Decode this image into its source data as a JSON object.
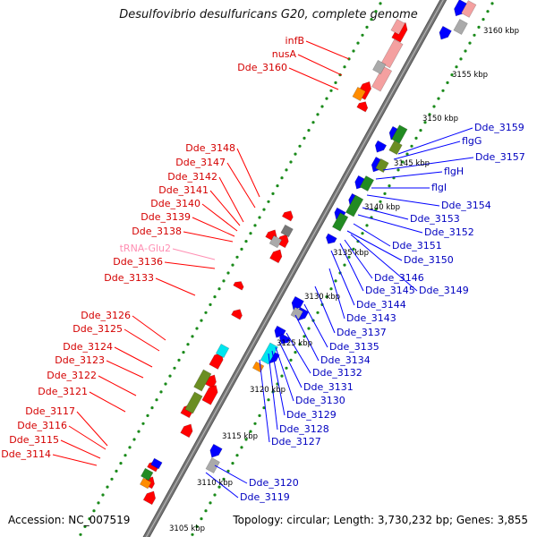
{
  "title": "Desulfovibrio desulfuricans G20, complete genome",
  "footer": {
    "accession": "Accession: NC_007519",
    "topology": "Topology: circular; Length: 3,730,232 bp; Genes: 3,855"
  },
  "colors": {
    "backbone": "#777777",
    "gene_forward": "#ff0000",
    "gene_reverse": "#0000ff",
    "trna": "#ff8fb3",
    "cds_green": "#228b22",
    "cds_olive": "#6b8e23",
    "cds_cyan": "#00e5ee",
    "cds_orange": "#ff8c00",
    "pink_block": "#f4a0a0",
    "gray_block": "#aaaaaa",
    "label_red": "#d40000",
    "label_blue": "#0000c0"
  },
  "scale_labels": [
    "3160 kbp",
    "3155 kbp",
    "3150 kbp",
    "3145 kbp",
    "3140 kbp",
    "3135 kbp",
    "3130 kbp",
    "3125 kbp",
    "3120 kbp",
    "3115 kbp",
    "3110 kbp",
    "3105 kbp"
  ],
  "left_labels": [
    {
      "text": "infB",
      "color": "red"
    },
    {
      "text": "nusA",
      "color": "red"
    },
    {
      "text": "Dde_3160",
      "color": "red"
    },
    {
      "text": "Dde_3148",
      "color": "red"
    },
    {
      "text": "Dde_3147",
      "color": "red"
    },
    {
      "text": "Dde_3142",
      "color": "red"
    },
    {
      "text": "Dde_3141",
      "color": "red"
    },
    {
      "text": "Dde_3140",
      "color": "red"
    },
    {
      "text": "Dde_3139",
      "color": "red"
    },
    {
      "text": "Dde_3138",
      "color": "red"
    },
    {
      "text": "tRNA-Glu2",
      "color": "pink"
    },
    {
      "text": "Dde_3136",
      "color": "red"
    },
    {
      "text": "Dde_3133",
      "color": "red"
    },
    {
      "text": "Dde_3126",
      "color": "red"
    },
    {
      "text": "Dde_3125",
      "color": "red"
    },
    {
      "text": "Dde_3124",
      "color": "red"
    },
    {
      "text": "Dde_3123",
      "color": "red"
    },
    {
      "text": "Dde_3122",
      "color": "red"
    },
    {
      "text": "Dde_3121",
      "color": "red"
    },
    {
      "text": "Dde_3117",
      "color": "red"
    },
    {
      "text": "Dde_3116",
      "color": "red"
    },
    {
      "text": "Dde_3115",
      "color": "red"
    },
    {
      "text": "Dde_3114",
      "color": "red"
    }
  ],
  "right_labels": [
    {
      "text": "Dde_3159",
      "color": "blue"
    },
    {
      "text": "flgG",
      "color": "blue"
    },
    {
      "text": "Dde_3157",
      "color": "blue"
    },
    {
      "text": "flgH",
      "color": "blue"
    },
    {
      "text": "flgI",
      "color": "blue"
    },
    {
      "text": "Dde_3154",
      "color": "blue"
    },
    {
      "text": "Dde_3153",
      "color": "blue"
    },
    {
      "text": "Dde_3152",
      "color": "blue"
    },
    {
      "text": "Dde_3151",
      "color": "blue"
    },
    {
      "text": "Dde_3150",
      "color": "blue"
    },
    {
      "text": "Dde_3146",
      "color": "blue"
    },
    {
      "text": "Dde_3145",
      "color": "blue"
    },
    {
      "text": "Dde_3149",
      "color": "blue"
    },
    {
      "text": "Dde_3144",
      "color": "blue"
    },
    {
      "text": "Dde_3143",
      "color": "blue"
    },
    {
      "text": "Dde_3137",
      "color": "blue"
    },
    {
      "text": "Dde_3135",
      "color": "blue"
    },
    {
      "text": "Dde_3134",
      "color": "blue"
    },
    {
      "text": "Dde_3132",
      "color": "blue"
    },
    {
      "text": "Dde_3131",
      "color": "blue"
    },
    {
      "text": "Dde_3130",
      "color": "blue"
    },
    {
      "text": "Dde_3129",
      "color": "blue"
    },
    {
      "text": "Dde_3128",
      "color": "blue"
    },
    {
      "text": "Dde_3127",
      "color": "blue"
    },
    {
      "text": "Dde_3120",
      "color": "blue"
    },
    {
      "text": "Dde_3119",
      "color": "blue"
    }
  ]
}
